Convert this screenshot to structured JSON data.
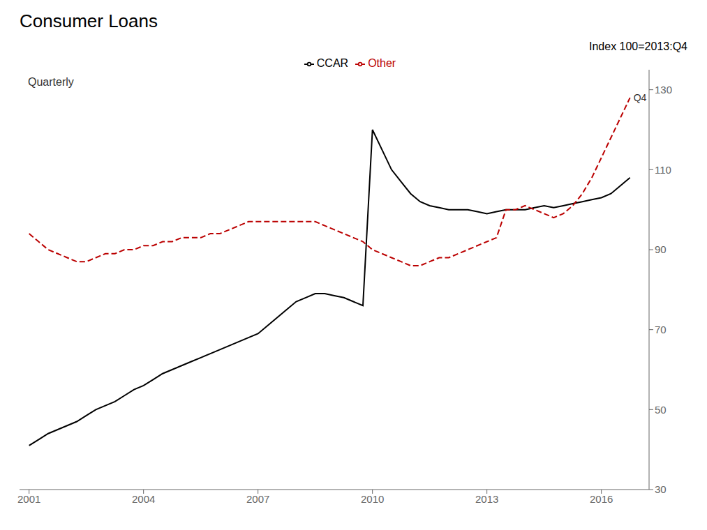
{
  "chart_data": {
    "type": "line",
    "title": "Consumer Loans",
    "ylabel": "Index 100=2013:Q4",
    "annotations": [
      "Quarterly",
      "Q4"
    ],
    "x": [
      2001.0,
      2001.25,
      2001.5,
      2001.75,
      2002.0,
      2002.25,
      2002.5,
      2002.75,
      2003.0,
      2003.25,
      2003.5,
      2003.75,
      2004.0,
      2004.25,
      2004.5,
      2004.75,
      2005.0,
      2005.25,
      2005.5,
      2005.75,
      2006.0,
      2006.25,
      2006.5,
      2006.75,
      2007.0,
      2007.25,
      2007.5,
      2007.75,
      2008.0,
      2008.25,
      2008.5,
      2008.75,
      2009.0,
      2009.25,
      2009.5,
      2009.75,
      2010.0,
      2010.25,
      2010.5,
      2010.75,
      2011.0,
      2011.25,
      2011.5,
      2011.75,
      2012.0,
      2012.25,
      2012.5,
      2012.75,
      2013.0,
      2013.25,
      2013.5,
      2013.75,
      2014.0,
      2014.25,
      2014.5,
      2014.75,
      2015.0,
      2015.25,
      2015.5,
      2015.75,
      2016.0,
      2016.25,
      2016.5,
      2016.75
    ],
    "series": [
      {
        "name": "CCAR",
        "color": "#000000",
        "line_style": "solid",
        "values": [
          41,
          42.5,
          44,
          45,
          46,
          47,
          48.5,
          50,
          51,
          52,
          53.5,
          55,
          56,
          57.5,
          59,
          60,
          61,
          62,
          63,
          64,
          65,
          66,
          67,
          68,
          69,
          71,
          73,
          75,
          77,
          78,
          79,
          79,
          78.5,
          78,
          77,
          76,
          120,
          115,
          110,
          107,
          104,
          102,
          101,
          100.5,
          100,
          100,
          100,
          99.5,
          99,
          99.5,
          100,
          100,
          100,
          100.5,
          101,
          100.5,
          101,
          101.5,
          102,
          102.5,
          103,
          104,
          106,
          108
        ]
      },
      {
        "name": "Other",
        "color": "#bb0000",
        "line_style": "dashed",
        "values": [
          94,
          92,
          90,
          89,
          88,
          87,
          87,
          88,
          89,
          89,
          90,
          90,
          91,
          91,
          92,
          92,
          93,
          93,
          93,
          94,
          94,
          95,
          96,
          97,
          97,
          97,
          97,
          97,
          97,
          97,
          97,
          96,
          95,
          94,
          93,
          92,
          90,
          89,
          88,
          87,
          86,
          86,
          87,
          88,
          88,
          89,
          90,
          91,
          92,
          93,
          100,
          100,
          101,
          100,
          99,
          98,
          99,
          101,
          104,
          108,
          113,
          118,
          123,
          128
        ]
      }
    ],
    "xlim": [
      2000.75,
      2017.25
    ],
    "xticks": [
      2001,
      2004,
      2007,
      2010,
      2013,
      2016
    ],
    "ylim": [
      30,
      135
    ],
    "yticks": [
      30,
      50,
      70,
      90,
      110,
      130
    ],
    "grid": false,
    "legend": "top"
  }
}
